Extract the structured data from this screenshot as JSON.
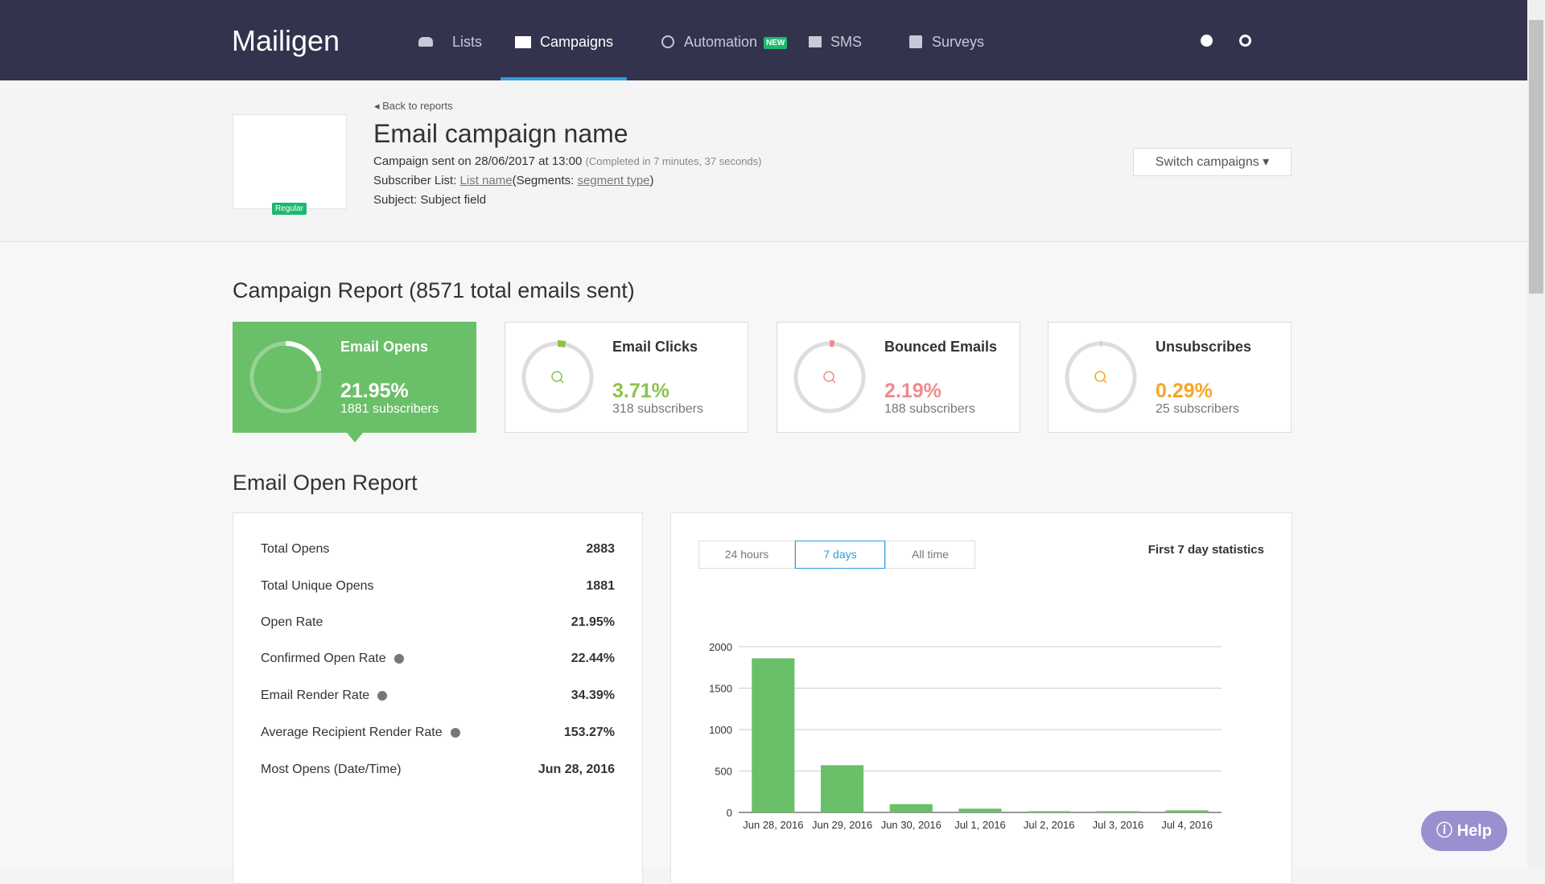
{
  "nav": {
    "logo": "Mailigen",
    "items": [
      "Lists",
      "Campaigns",
      "Automation",
      "SMS",
      "Surveys"
    ],
    "badge": "NEW"
  },
  "header": {
    "back": "Back to reports",
    "title": "Email campaign name",
    "badge": "Regular",
    "sent_prefix": "Campaign sent on 28/06/2017 at 13:00",
    "sent_note": "(Completed in 7 minutes, 37 seconds)",
    "list_prefix": "Subscriber List:",
    "list_link": "List name",
    "segments_prefix": "(Segments:",
    "segments_link": "segment type",
    "segments_suffix": ")",
    "subject": "Subject: Subject field",
    "switch": "Switch campaigns"
  },
  "report": {
    "heading": "Campaign Report (8571 total emails sent)",
    "cards": [
      {
        "title": "Email Opens",
        "percent": 21.95,
        "percent_label": "21.95%",
        "subscribers": "1881 subscribers",
        "color": "#ffffff"
      },
      {
        "title": "Email Clicks",
        "percent": 3.71,
        "percent_label": "3.71%",
        "subscribers": "318 subscribers",
        "color": "#8bc34a"
      },
      {
        "title": "Bounced Emails",
        "percent": 2.19,
        "percent_label": "2.19%",
        "subscribers": "188 subscribers",
        "color": "#f08b8b"
      },
      {
        "title": "Unsubscribes",
        "percent": 0.29,
        "percent_label": "0.29%",
        "subscribers": "25 subscribers",
        "color": "#f5a623"
      }
    ]
  },
  "open_report": {
    "heading": "Email Open Report",
    "rows": [
      [
        "Total Opens",
        "2883"
      ],
      [
        "Total Unique Opens",
        "1881"
      ],
      [
        "Open Rate",
        "21.95%"
      ],
      [
        "Confirmed Open Rate",
        "22.44%"
      ],
      [
        "Email Render Rate",
        "34.39%"
      ],
      [
        "Average Recipient Render Rate",
        "153.27%"
      ],
      [
        "Most Opens (Date/Time)",
        "Jun 28, 2016"
      ]
    ],
    "tabs": [
      "24 hours",
      "7 days",
      "All time"
    ],
    "stats_title": "First 7 day statistics"
  },
  "open_chart": {
    "type": "bar",
    "categories": [
      "Jun 28, 2016",
      "Jun 29, 2016",
      "Jun 30, 2016",
      "Jul 1, 2016",
      "Jul 2, 2016",
      "Jul 3, 2016",
      "Jul 4, 2016"
    ],
    "values": [
      1860,
      570,
      100,
      45,
      15,
      15,
      25
    ],
    "color": "#6abf69",
    "ylim": [
      0,
      2000
    ],
    "yticks": [
      0,
      500,
      1000,
      1500,
      2000
    ],
    "grid": true
  },
  "help": "Help"
}
